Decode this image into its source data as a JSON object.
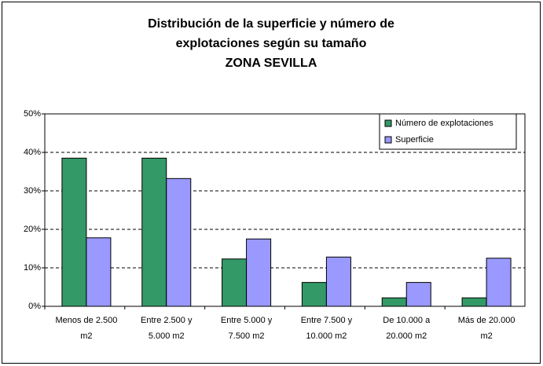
{
  "chart_data": {
    "type": "bar",
    "title": [
      "Distribución de la superficie y número de",
      "explotaciones según su tamaño",
      "ZONA SEVILLA"
    ],
    "categories": [
      [
        "Menos de 2.500",
        "m2"
      ],
      [
        "Entre 2.500 y",
        "5.000 m2"
      ],
      [
        "Entre 5.000 y",
        "7.500 m2"
      ],
      [
        "Entre 7.500 y",
        "10.000 m2"
      ],
      [
        "De 10.000 a",
        "20.000 m2"
      ],
      [
        "Más de 20.000",
        "m2"
      ]
    ],
    "series": [
      {
        "name": "Número de explotaciones",
        "color": "#339966",
        "values": [
          38.5,
          38.5,
          12.3,
          6.2,
          2.2,
          2.2
        ]
      },
      {
        "name": "Superficie",
        "color": "#9999ff",
        "values": [
          17.8,
          33.2,
          17.5,
          12.8,
          6.2,
          12.5
        ]
      }
    ],
    "ylim": [
      0,
      50
    ],
    "yticks": [
      {
        "value": 0,
        "label": "0%"
      },
      {
        "value": 10,
        "label": "10%"
      },
      {
        "value": 20,
        "label": "20%"
      },
      {
        "value": 30,
        "label": "30%"
      },
      {
        "value": 40,
        "label": "40%"
      },
      {
        "value": 50,
        "label": "50%"
      }
    ],
    "grid": true,
    "legend": "top-right"
  }
}
